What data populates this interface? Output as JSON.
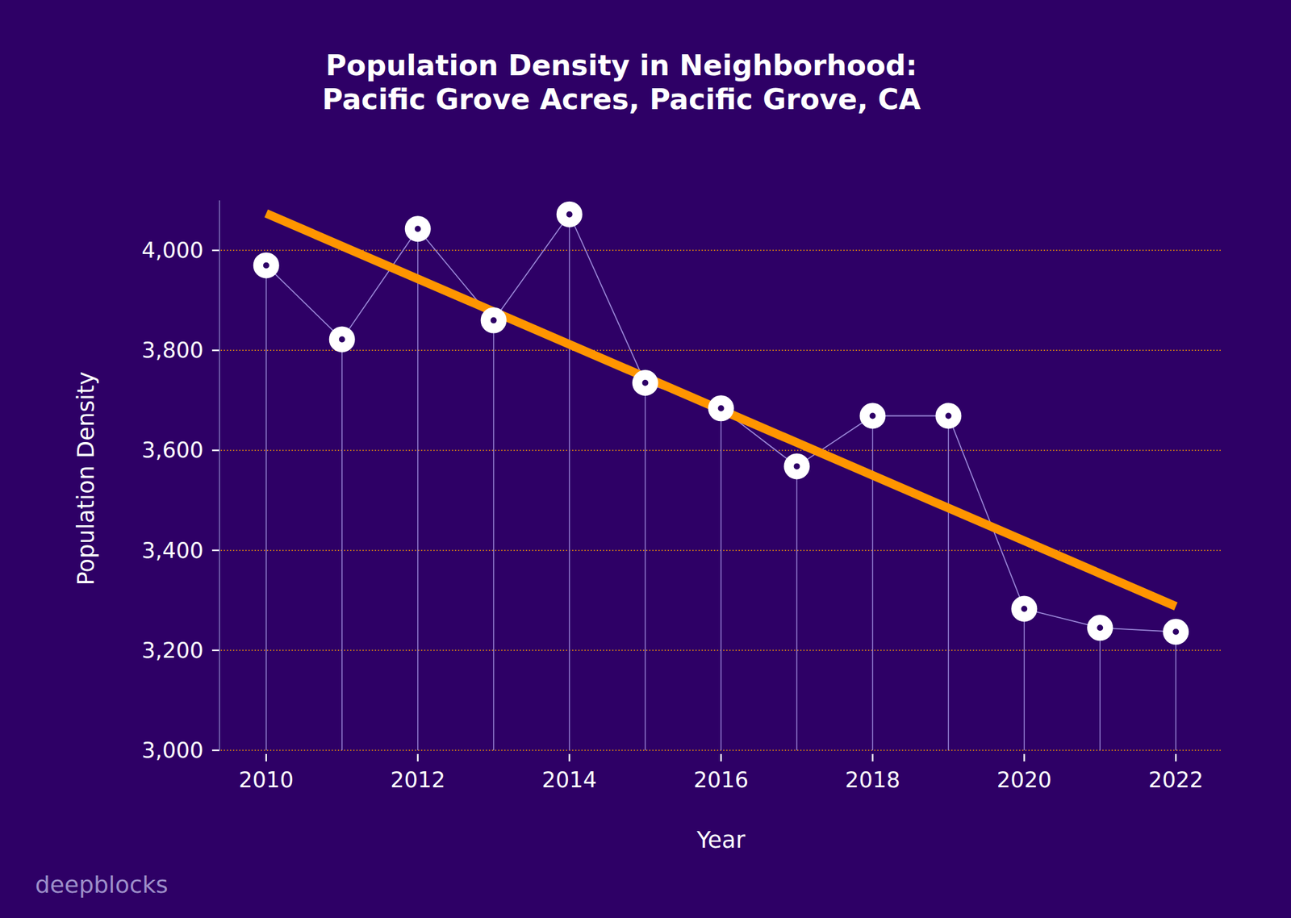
{
  "chart_data": {
    "type": "line",
    "title": "Population Density in Neighborhood:\nPacific Grove Acres, Pacific Grove, CA",
    "x_label": "Year",
    "y_label": "Population Density",
    "watermark": "deepblocks",
    "x": [
      2010,
      2011,
      2012,
      2013,
      2014,
      2015,
      2016,
      2017,
      2018,
      2019,
      2020,
      2021,
      2022
    ],
    "series": [
      {
        "name": "Population Density",
        "color": "#ffffff",
        "marker": "circle",
        "values": [
          3970,
          3822,
          4043,
          3860,
          4072,
          3735,
          3684,
          3568,
          3669,
          3669,
          3283,
          3245,
          3237
        ]
      }
    ],
    "trend": {
      "color": "#ff9500",
      "x": [
        2010,
        2022
      ],
      "values": [
        4074,
        3288
      ]
    },
    "xlim": [
      2009.4,
      2022.6
    ],
    "xticks": [
      2010,
      2012,
      2014,
      2016,
      2018,
      2020,
      2022
    ],
    "ylim": [
      3000,
      4100
    ],
    "yticks": [
      {
        "value": 3000,
        "label": "3,000"
      },
      {
        "value": 3200,
        "label": "3,200"
      },
      {
        "value": 3400,
        "label": "3,400"
      },
      {
        "value": 3600,
        "label": "3,600"
      },
      {
        "value": 3800,
        "label": "3,800"
      },
      {
        "value": 4000,
        "label": "4,000"
      }
    ],
    "grid": true
  }
}
